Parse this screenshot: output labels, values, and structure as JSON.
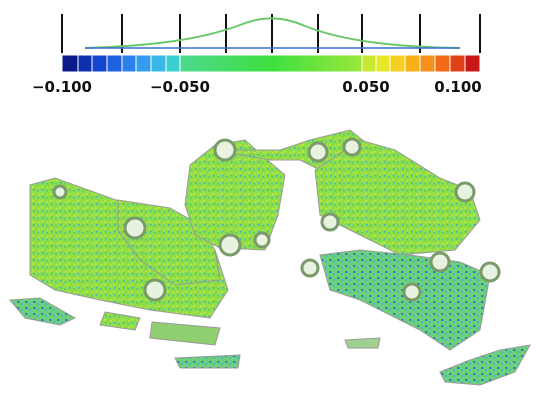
{
  "colorbar": {
    "labels": [
      "−0.100",
      "−0.050",
      "0.050",
      "0.100"
    ]
  }
}
